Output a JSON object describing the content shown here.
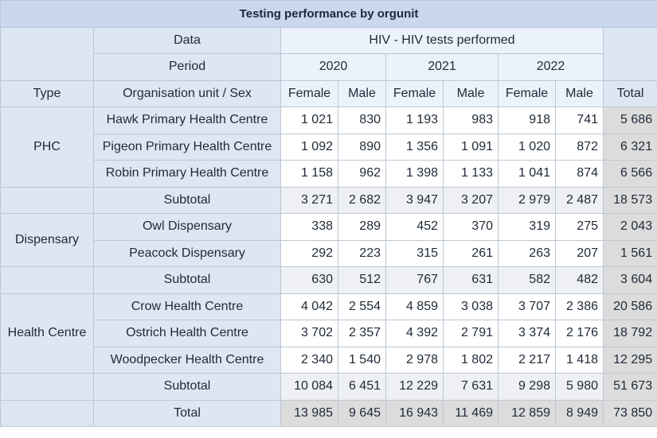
{
  "title": "Testing performance by orgunit",
  "header": {
    "data_label": "Data",
    "data_value": "HIV - HIV tests performed",
    "period_label": "Period",
    "years": [
      "2020",
      "2021",
      "2022"
    ],
    "type_label": "Type",
    "org_label": "Organisation unit / Sex",
    "sexes": [
      "Female",
      "Male"
    ],
    "total_label": "Total"
  },
  "groups": [
    {
      "type": "PHC",
      "rows": [
        {
          "name": "Hawk Primary Health Centre",
          "values": [
            "1 021",
            "830",
            "1 193",
            "983",
            "918",
            "741"
          ],
          "total": "5 686"
        },
        {
          "name": "Pigeon Primary Health Centre",
          "values": [
            "1 092",
            "890",
            "1 356",
            "1 091",
            "1 020",
            "872"
          ],
          "total": "6 321"
        },
        {
          "name": "Robin Primary Health Centre",
          "values": [
            "1 158",
            "962",
            "1 398",
            "1 133",
            "1 041",
            "874"
          ],
          "total": "6 566"
        }
      ],
      "subtotal": {
        "label": "Subtotal",
        "values": [
          "3 271",
          "2 682",
          "3 947",
          "3 207",
          "2 979",
          "2 487"
        ],
        "total": "18 573"
      }
    },
    {
      "type": "Dispensary",
      "rows": [
        {
          "name": "Owl Dispensary",
          "values": [
            "338",
            "289",
            "452",
            "370",
            "319",
            "275"
          ],
          "total": "2 043"
        },
        {
          "name": "Peacock Dispensary",
          "values": [
            "292",
            "223",
            "315",
            "261",
            "263",
            "207"
          ],
          "total": "1 561"
        }
      ],
      "subtotal": {
        "label": "Subtotal",
        "values": [
          "630",
          "512",
          "767",
          "631",
          "582",
          "482"
        ],
        "total": "3 604"
      }
    },
    {
      "type": "Health Centre",
      "rows": [
        {
          "name": "Crow Health Centre",
          "values": [
            "4 042",
            "2 554",
            "4 859",
            "3 038",
            "3 707",
            "2 386"
          ],
          "total": "20 586"
        },
        {
          "name": "Ostrich Health Centre",
          "values": [
            "3 702",
            "2 357",
            "4 392",
            "2 791",
            "3 374",
            "2 176"
          ],
          "total": "18 792"
        },
        {
          "name": "Woodpecker Health Centre",
          "values": [
            "2 340",
            "1 540",
            "2 978",
            "1 802",
            "2 217",
            "1 418"
          ],
          "total": "12 295"
        }
      ],
      "subtotal": {
        "label": "Subtotal",
        "values": [
          "10 084",
          "6 451",
          "12 229",
          "7 631",
          "9 298",
          "5 980"
        ],
        "total": "51 673"
      }
    }
  ],
  "grand_total": {
    "label": "Total",
    "values": [
      "13 985",
      "9 645",
      "16 943",
      "11 469",
      "12 859",
      "8 949"
    ],
    "total": "73 850"
  }
}
